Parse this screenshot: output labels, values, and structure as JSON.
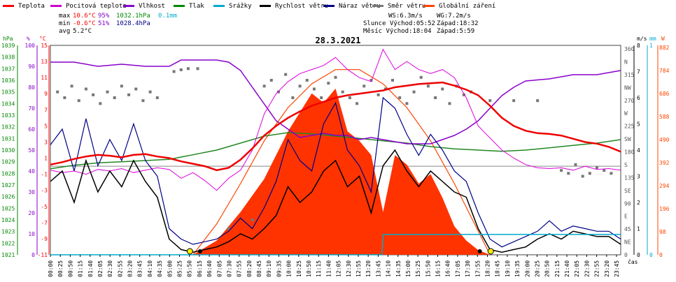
{
  "chart_data": {
    "type": "line",
    "title": "28.3.2021",
    "legend": [
      {
        "name": "Teplota",
        "color": "#ff0000"
      },
      {
        "name": "Pocitová teplota",
        "color": "#cc00cc"
      },
      {
        "name": "Vlhkost",
        "color": "#8800cc"
      },
      {
        "name": "Tlak",
        "color": "#008800"
      },
      {
        "name": "Srážky",
        "color": "#00aacc"
      },
      {
        "name": "Rychlost větru",
        "color": "#000000"
      },
      {
        "name": "Náraz větru",
        "color": "#000088"
      },
      {
        "name": "Směr větru",
        "color": "#777777"
      },
      {
        "name": "Globální záření",
        "color": "#ff4400"
      }
    ],
    "stats": [
      {
        "label": "max",
        "temp": "10.6°C",
        "hum": "95%",
        "press": "1032.1hPa",
        "rain": "0.1mm"
      },
      {
        "label": "min",
        "temp": "-0.6°C",
        "hum": "51%",
        "press": "1028.4hPa",
        "rain": ""
      },
      {
        "label": "avg",
        "temp": "5.2°C",
        "hum": "",
        "press": "",
        "rain": ""
      }
    ],
    "info": {
      "ws": "WS:6.3m/s",
      "wg": "WG:7.2m/s",
      "sun_rise": "Slunce Východ:05:52",
      "sun_set": "Západ:18:32",
      "moon_rise": "Měsíc Východ:18:04",
      "moon_set": "Západ:5:59"
    },
    "axes": {
      "hpa_label": "hPa",
      "hum_label": "%",
      "temp_label": "°C",
      "time_label": "čas",
      "wind_label": "m/s",
      "rain_label": "mm",
      "rad_label": "W",
      "hpa_ticks": [
        "1039",
        "1038",
        "1037",
        "1036",
        "1035",
        "1034",
        "1033",
        "1032",
        "1031",
        "1030",
        "1029",
        "1028",
        "1027",
        "1026",
        "1025",
        "1024",
        "1023",
        "1022",
        "1021"
      ],
      "hum_ticks": [
        "100",
        "90",
        "80",
        "70",
        "60",
        "50",
        "40",
        "30",
        "20",
        "10",
        "0"
      ],
      "temp_ticks": [
        "15",
        "13",
        "11",
        "9",
        "7",
        "5",
        "3",
        "1",
        "-1",
        "-3",
        "-5",
        "-7",
        "-9",
        "-11"
      ],
      "dir_ticks": [
        "360",
        "N",
        "315",
        "NW",
        "270",
        "W",
        "225",
        "SW",
        "180",
        "S",
        "135",
        "SE",
        "90",
        "E",
        "45",
        "NE",
        "0"
      ],
      "wind_ticks": [
        "8",
        "7",
        "6",
        "5",
        "4",
        "3",
        "2",
        "1",
        "0"
      ],
      "rain_ticks": [
        "1",
        "0"
      ],
      "rad_ticks": [
        "882",
        "784",
        "686",
        "588",
        "490",
        "392",
        "294",
        "196",
        "98",
        "0"
      ],
      "time_ticks": [
        "00:00",
        "00:25",
        "00:50",
        "01:15",
        "01:40",
        "02:05",
        "02:30",
        "02:55",
        "03:20",
        "03:45",
        "04:10",
        "04:35",
        "05:00",
        "05:25",
        "05:50",
        "06:15",
        "06:40",
        "07:05",
        "07:30",
        "07:55",
        "08:20",
        "08:45",
        "09:10",
        "09:35",
        "10:00",
        "10:25",
        "10:50",
        "11:15",
        "11:40",
        "12:05",
        "12:30",
        "12:55",
        "13:20",
        "13:45",
        "14:10",
        "14:35",
        "15:00",
        "15:25",
        "15:50",
        "16:15",
        "16:40",
        "17:05",
        "17:30",
        "17:55",
        "18:20",
        "18:45",
        "19:10",
        "19:35",
        "20:00",
        "20:25",
        "20:50",
        "21:15",
        "21:40",
        "22:05",
        "22:30",
        "22:55",
        "23:20",
        "23:45"
      ]
    },
    "temp_range": [
      -11,
      15
    ],
    "hum_range": [
      0,
      100
    ],
    "press_range": [
      1021,
      1039
    ],
    "wind_range": [
      0,
      8
    ],
    "rad_range": [
      0,
      882
    ],
    "x_hours": [
      0,
      24
    ],
    "series": [
      {
        "name": "Teplota",
        "color": "#ff0000",
        "x": [
          0,
          0.5,
          1,
          1.5,
          2,
          2.5,
          3,
          3.5,
          4,
          4.5,
          5,
          5.5,
          6,
          6.5,
          7,
          7.5,
          8,
          8.5,
          9,
          9.5,
          10,
          10.5,
          11,
          11.5,
          12,
          12.5,
          13,
          13.5,
          14,
          14.5,
          15,
          15.5,
          16,
          16.5,
          17,
          17.5,
          18,
          18.5,
          19,
          19.5,
          20,
          20.5,
          21,
          21.5,
          22,
          22.5,
          23,
          23.5,
          24
        ],
        "y": [
          0.2,
          0.5,
          0.9,
          1.2,
          1.4,
          1.3,
          1.1,
          1.4,
          1.5,
          1.2,
          1.0,
          0.6,
          0.3,
          0,
          -0.5,
          -0.2,
          0.8,
          2.2,
          3.8,
          5.0,
          6.0,
          6.8,
          7.5,
          8.0,
          8.5,
          8.8,
          9.0,
          9.2,
          9.4,
          9.8,
          10.0,
          10.2,
          10.3,
          10.4,
          10.0,
          9.5,
          8.8,
          7.5,
          6.0,
          5.0,
          4.4,
          4.1,
          4.0,
          3.8,
          3.4,
          3.0,
          2.8,
          2.4,
          1.8
        ]
      },
      {
        "name": "Pocitová teplota",
        "color": "#cc00cc",
        "x": [
          0,
          0.5,
          1,
          1.5,
          2,
          2.5,
          3,
          3.5,
          4,
          4.5,
          5,
          5.5,
          6,
          6.5,
          7,
          7.5,
          8,
          8.5,
          9,
          9.5,
          10,
          10.5,
          11,
          11.5,
          12,
          12.5,
          13,
          13.5,
          14,
          14.5,
          15,
          15.5,
          16,
          16.5,
          17,
          17.5,
          18,
          18.5,
          19,
          19.5,
          20,
          20.5,
          21,
          21.5,
          22,
          22.5,
          23,
          23.5,
          24
        ],
        "y": [
          -0.5,
          -0.8,
          -0.6,
          -1.0,
          -0.4,
          -0.6,
          -0.3,
          -0.8,
          -0.5,
          -0.2,
          -0.4,
          -1.5,
          -0.8,
          -1.8,
          -3.0,
          -1.5,
          -0.5,
          2.0,
          6.5,
          9.0,
          10.5,
          11.5,
          12.0,
          12.5,
          13.5,
          12.0,
          11.0,
          10.5,
          14.5,
          12.0,
          13.0,
          12.0,
          11.5,
          12.0,
          11.0,
          8.5,
          5.0,
          3.5,
          2.0,
          1.0,
          0.2,
          -0.2,
          -0.3,
          -0.2,
          -0.5,
          0,
          -0.4,
          -0.3,
          -0.5
        ]
      },
      {
        "name": "Vlhkost",
        "color": "#8800cc",
        "x": [
          0,
          1,
          2,
          3,
          4,
          5,
          5.5,
          6,
          7,
          7.5,
          8,
          8.5,
          9,
          9.5,
          10,
          10.5,
          11,
          11.5,
          12,
          12.5,
          13,
          13.5,
          14,
          14.5,
          15,
          15.5,
          16,
          16.5,
          17,
          17.5,
          18,
          18.5,
          19,
          19.5,
          20,
          21,
          22,
          23,
          24
        ],
        "y": [
          92,
          92,
          90,
          91,
          90,
          90,
          93,
          93,
          93,
          92,
          88,
          80,
          72,
          64,
          60,
          56,
          57,
          58,
          57,
          57,
          55,
          56,
          55,
          54,
          53,
          53,
          53,
          55,
          57,
          60,
          64,
          70,
          76,
          80,
          83,
          84,
          86,
          86,
          88
        ]
      },
      {
        "name": "Tlak",
        "color": "#008800",
        "x": [
          0,
          1,
          2,
          3,
          4,
          5,
          6,
          7,
          8,
          9,
          10,
          11,
          12,
          13,
          14,
          15,
          16,
          17,
          18,
          19,
          20,
          21,
          22,
          23,
          24
        ],
        "y": [
          1028.4,
          1028.7,
          1028.9,
          1029.0,
          1029.1,
          1029.2,
          1029.6,
          1030.0,
          1030.6,
          1031.2,
          1031.5,
          1031.4,
          1031.2,
          1031.0,
          1030.8,
          1030.6,
          1030.3,
          1030.1,
          1030.0,
          1029.9,
          1030.0,
          1030.2,
          1030.4,
          1030.6,
          1030.9
        ]
      },
      {
        "name": "Rychlost větru",
        "color": "#000000",
        "x": [
          0,
          0.5,
          1,
          1.5,
          2,
          2.5,
          3,
          3.5,
          4,
          4.5,
          5,
          5.5,
          6,
          6.5,
          7,
          7.5,
          8,
          8.5,
          9,
          9.5,
          10,
          10.5,
          11,
          11.5,
          12,
          12.5,
          13,
          13.5,
          14,
          14.5,
          15,
          15.5,
          16,
          16.5,
          17,
          17.5,
          18,
          18.5,
          19,
          19.5,
          20,
          20.5,
          21,
          21.5,
          22,
          22.5,
          23,
          23.5,
          24
        ],
        "y": [
          2.8,
          3.2,
          2.0,
          3.6,
          2.4,
          3.2,
          2.6,
          3.6,
          2.8,
          2.2,
          0.6,
          0.2,
          0.1,
          0.2,
          0.3,
          0.5,
          0.8,
          0.6,
          1.0,
          1.5,
          2.6,
          2.0,
          2.4,
          3.2,
          3.6,
          2.6,
          3.0,
          1.6,
          3.4,
          4.0,
          3.2,
          2.6,
          3.2,
          2.8,
          2.4,
          2.2,
          1.0,
          0.2,
          0.1,
          0.2,
          0.3,
          0.6,
          0.8,
          0.6,
          0.9,
          0.8,
          0.7,
          0.7,
          0.4
        ]
      },
      {
        "name": "Náraz větru",
        "color": "#000088",
        "x": [
          0,
          0.5,
          1,
          1.5,
          2,
          2.5,
          3,
          3.5,
          4,
          4.5,
          5,
          5.5,
          6,
          6.5,
          7,
          7.5,
          8,
          8.5,
          9,
          9.5,
          10,
          10.5,
          11,
          11.5,
          12,
          12.5,
          13,
          13.5,
          14,
          14.5,
          15,
          15.5,
          16,
          16.5,
          17,
          17.5,
          18,
          18.5,
          19,
          19.5,
          20,
          20.5,
          21,
          21.5,
          22,
          22.5,
          23,
          23.5,
          24
        ],
        "y": [
          4.2,
          4.8,
          3.2,
          5.2,
          3.4,
          4.4,
          3.6,
          5.0,
          3.6,
          3.0,
          1.0,
          0.6,
          0.4,
          0.5,
          0.6,
          0.9,
          1.4,
          1.0,
          1.8,
          2.8,
          4.4,
          3.6,
          3.2,
          5.0,
          5.8,
          4.0,
          3.4,
          2.4,
          6.0,
          5.6,
          4.6,
          3.8,
          4.6,
          4.0,
          3.2,
          2.8,
          1.6,
          0.6,
          0.3,
          0.5,
          0.7,
          0.9,
          1.3,
          0.9,
          1.1,
          1.0,
          0.9,
          0.9,
          0.6
        ]
      },
      {
        "name": "Globální záření",
        "color": "#ff4400",
        "x": [
          6,
          7,
          8,
          9,
          10,
          10.5,
          11,
          11.5,
          12,
          12.5,
          13,
          13.5,
          14,
          14.5,
          15,
          15.5,
          16,
          16.5,
          17,
          17.5,
          18,
          18.5
        ],
        "y": [
          0,
          60,
          180,
          320,
          520,
          600,
          680,
          640,
          700,
          520,
          480,
          420,
          180,
          420,
          380,
          300,
          340,
          240,
          120,
          60,
          20,
          0
        ]
      },
      {
        "name": "Globální záření max",
        "color": "#ff4400",
        "x": [
          6,
          7,
          8,
          9,
          10,
          11,
          12,
          13,
          14,
          15,
          16,
          17,
          18,
          18.5
        ],
        "y": [
          0,
          130,
          300,
          480,
          620,
          720,
          780,
          780,
          720,
          620,
          480,
          300,
          100,
          0
        ]
      },
      {
        "name": "Srážky",
        "color": "#00aacc",
        "x": [
          0,
          13.95,
          14.0,
          24
        ],
        "y": [
          0,
          0,
          0.1,
          0.1
        ]
      },
      {
        "name": "Směr větru",
        "color": "#777777",
        "x": [
          0.3,
          0.6,
          0.9,
          1.2,
          1.5,
          1.8,
          2.1,
          2.4,
          2.7,
          3.0,
          3.3,
          3.6,
          3.9,
          4.2,
          4.5,
          5.2,
          5.5,
          5.8,
          6.2,
          7.5,
          8.5,
          9.0,
          9.3,
          9.6,
          9.9,
          10.2,
          10.5,
          10.8,
          11.1,
          11.4,
          11.7,
          12.0,
          12.3,
          12.6,
          12.9,
          13.2,
          13.5,
          13.8,
          14.1,
          14.4,
          14.7,
          15.0,
          15.3,
          15.6,
          15.9,
          16.2,
          16.5,
          16.8,
          17.1,
          17.4,
          17.7,
          18.5,
          19.5,
          20.5,
          21.5,
          21.8,
          22.1,
          22.4,
          22.7,
          23.0,
          23.3,
          23.6
        ],
        "y": [
          280,
          270,
          290,
          265,
          285,
          275,
          260,
          280,
          270,
          290,
          275,
          285,
          265,
          280,
          270,
          315,
          318,
          320,
          320,
          45,
          60,
          290,
          300,
          280,
          310,
          270,
          290,
          300,
          285,
          270,
          295,
          305,
          280,
          270,
          260,
          290,
          300,
          275,
          285,
          300,
          270,
          260,
          280,
          305,
          290,
          270,
          285,
          260,
          290,
          275,
          280,
          265,
          265,
          265,
          145,
          140,
          155,
          135,
          140,
          150,
          145,
          140
        ]
      }
    ]
  }
}
